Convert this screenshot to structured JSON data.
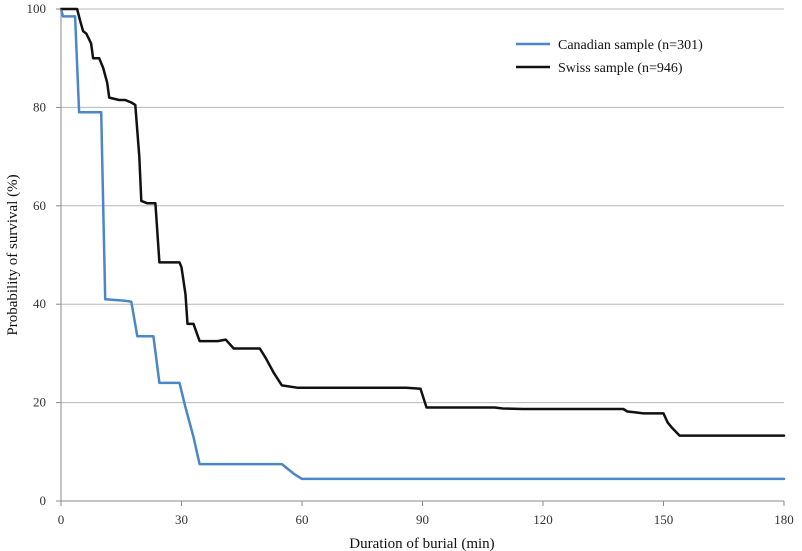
{
  "chart_data": {
    "type": "line",
    "step": true,
    "title": "",
    "xlabel": "Duration of burial (min)",
    "ylabel": "Probability of survival (%)",
    "xlim": [
      0,
      180
    ],
    "ylim": [
      0,
      100
    ],
    "x_ticks": [
      0,
      30,
      60,
      90,
      120,
      150,
      180
    ],
    "y_ticks": [
      0,
      20,
      40,
      60,
      80,
      100
    ],
    "x_tick_labels": [
      "0",
      "30",
      "60",
      "90",
      "120",
      "150",
      "180"
    ],
    "y_tick_labels": [
      "0",
      "20",
      "40",
      "60",
      "80",
      "100"
    ],
    "grid": {
      "horizontal": true,
      "vertical": false
    },
    "legend_position": "top-right",
    "series": [
      {
        "name": "Canadian sample (n=301)",
        "color": "#4a86c8",
        "points": [
          [
            0,
            100
          ],
          [
            0.5,
            98.5
          ],
          [
            3.5,
            98.5
          ],
          [
            4.5,
            79
          ],
          [
            10,
            79
          ],
          [
            11,
            41
          ],
          [
            16,
            40.7
          ],
          [
            17.5,
            40.5
          ],
          [
            19,
            33.5
          ],
          [
            23,
            33.5
          ],
          [
            24.5,
            24
          ],
          [
            29.5,
            24
          ],
          [
            31,
            19
          ],
          [
            33,
            13
          ],
          [
            34.5,
            7.5
          ],
          [
            55,
            7.5
          ],
          [
            58,
            5.5
          ],
          [
            60,
            4.5
          ],
          [
            180,
            4.5
          ]
        ]
      },
      {
        "name": "Swiss sample (n=946)",
        "color": "#111111",
        "points": [
          [
            0,
            100
          ],
          [
            4,
            100
          ],
          [
            4.8,
            97.5
          ],
          [
            5.5,
            95.5
          ],
          [
            6.3,
            95
          ],
          [
            7.5,
            93
          ],
          [
            8,
            90
          ],
          [
            9.5,
            90
          ],
          [
            10.5,
            88
          ],
          [
            11.5,
            85
          ],
          [
            12,
            82
          ],
          [
            14.5,
            81.5
          ],
          [
            16,
            81.5
          ],
          [
            17.5,
            81
          ],
          [
            18.5,
            80.5
          ],
          [
            19.5,
            70
          ],
          [
            20,
            61
          ],
          [
            21.5,
            60.5
          ],
          [
            23.5,
            60.5
          ],
          [
            24.5,
            48.5
          ],
          [
            29.5,
            48.5
          ],
          [
            30,
            47.5
          ],
          [
            31,
            42
          ],
          [
            31.5,
            36
          ],
          [
            33,
            36
          ],
          [
            34.5,
            32.5
          ],
          [
            39,
            32.5
          ],
          [
            41,
            32.8
          ],
          [
            43,
            31
          ],
          [
            49.5,
            31
          ],
          [
            51,
            29
          ],
          [
            53,
            26
          ],
          [
            55,
            23.5
          ],
          [
            59,
            23
          ],
          [
            86,
            23
          ],
          [
            89.5,
            22.8
          ],
          [
            91,
            19
          ],
          [
            108,
            19
          ],
          [
            110,
            18.8
          ],
          [
            115,
            18.7
          ],
          [
            140,
            18.7
          ],
          [
            141,
            18.2
          ],
          [
            143,
            18
          ],
          [
            145,
            17.8
          ],
          [
            150,
            17.8
          ],
          [
            151,
            16
          ],
          [
            152,
            15
          ],
          [
            154,
            13.3
          ],
          [
            180,
            13.3
          ]
        ]
      }
    ]
  }
}
